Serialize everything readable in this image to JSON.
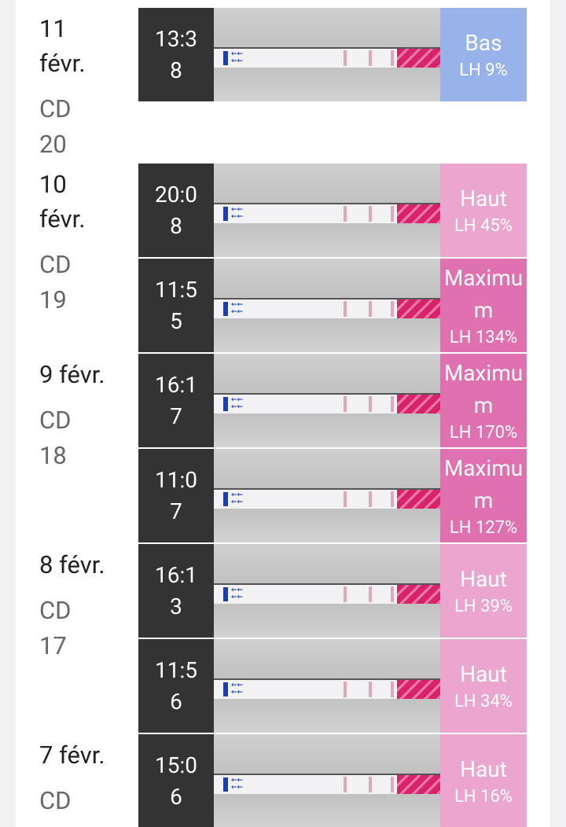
{
  "days": [
    {
      "date": "11 févr.",
      "cd": "CD 20",
      "tests": [
        {
          "time": "13:38",
          "level": "Bas",
          "lh": "LH 9%",
          "color": "#97b3e9"
        }
      ]
    },
    {
      "date": "10 févr.",
      "cd": "CD 19",
      "tests": [
        {
          "time": "20:08",
          "level": "Haut",
          "lh": "LH 45%",
          "color": "#eaa6cf"
        },
        {
          "time": "11:55",
          "level": "Maximum",
          "lh": "LH 134%",
          "color": "#e071b0"
        }
      ]
    },
    {
      "date": "9 févr.",
      "cd": "CD 18",
      "tests": [
        {
          "time": "16:17",
          "level": "Maximum",
          "lh": "LH 170%",
          "color": "#e071b0"
        },
        {
          "time": "11:07",
          "level": "Maximum",
          "lh": "LH 127%",
          "color": "#e071b0"
        }
      ]
    },
    {
      "date": "8 févr.",
      "cd": "CD 17",
      "tests": [
        {
          "time": "16:13",
          "level": "Haut",
          "lh": "LH 39%",
          "color": "#eaa6cf"
        },
        {
          "time": "11:56",
          "level": "Haut",
          "lh": "LH 34%",
          "color": "#eaa6cf"
        }
      ]
    },
    {
      "date": "7 févr.",
      "cd": "CD",
      "tests": [
        {
          "time": "15:06",
          "level": "Haut",
          "lh": "LH 16%",
          "color": "#eaa6cf"
        }
      ]
    }
  ]
}
